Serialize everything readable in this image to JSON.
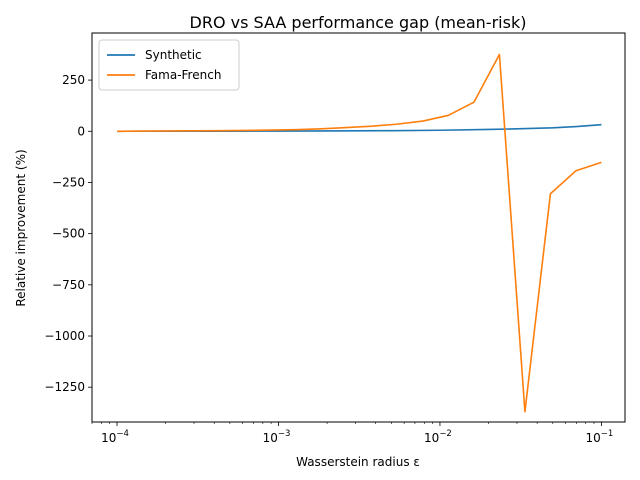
{
  "chart_data": {
    "type": "line",
    "title": "DRO vs SAA performance gap (mean-risk)",
    "xlabel": "Wasserstein radius ε",
    "ylabel": "Relative improvement (%)",
    "xscale": "log",
    "xlim": [
      7e-05,
      0.14
    ],
    "ylim": [
      -1420,
      480
    ],
    "yticks": [
      250,
      0,
      -250,
      -500,
      -750,
      -1000,
      -1250
    ],
    "ytick_labels": [
      "250",
      "0",
      "−250",
      "−500",
      "−750",
      "−1000",
      "−1250"
    ],
    "xticks": [
      0.0001,
      0.001,
      0.01,
      0.1
    ],
    "xtick_labels": [
      {
        "base": "10",
        "exp": "−4"
      },
      {
        "base": "10",
        "exp": "−3"
      },
      {
        "base": "10",
        "exp": "−2"
      },
      {
        "base": "10",
        "exp": "−1"
      }
    ],
    "legend_position": "top-left",
    "grid": false,
    "series": [
      {
        "name": "Synthetic",
        "color": "#1f77b4",
        "x": [
          0.0001,
          0.0002,
          0.0005,
          0.001,
          0.002,
          0.005,
          0.01,
          0.02,
          0.03,
          0.05,
          0.07,
          0.1
        ],
        "y": [
          0,
          0.2,
          0.5,
          1,
          1.5,
          3,
          5,
          9,
          12,
          17,
          23,
          32
        ]
      },
      {
        "name": "Fama-French",
        "color": "#ff7f0e",
        "x": [
          0.0001,
          0.000144,
          0.000207,
          0.000298,
          0.000428,
          0.000616,
          0.000886,
          0.001274,
          0.001833,
          0.002637,
          0.003793,
          0.005456,
          0.007848,
          0.011288,
          0.016238,
          0.023357,
          0.033598,
          0.048329,
          0.069519,
          0.1
        ],
        "y": [
          0,
          1,
          1.5,
          2,
          3,
          4,
          6,
          8,
          12,
          18,
          25,
          35,
          50,
          78,
          142,
          375,
          -1370,
          -305,
          -193,
          -152
        ]
      }
    ]
  }
}
